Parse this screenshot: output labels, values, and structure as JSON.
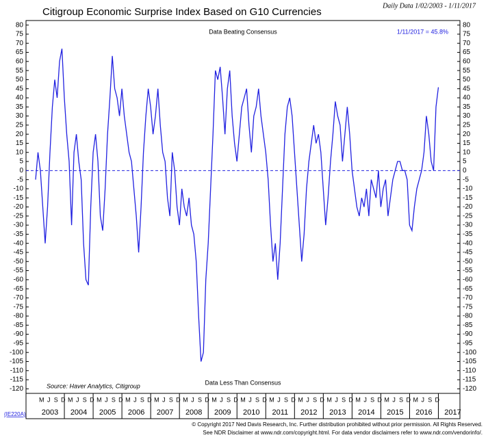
{
  "chart_data": {
    "type": "line",
    "title": "Citigroup Economic Surprise Index Based on G10 Currencies",
    "subtitle": "Daily Data 1/02/2003 - 1/11/2017",
    "annotations": [
      "Data Beating Consensus",
      "Data Less Than Consensus",
      "1/11/2017 = 45.8%"
    ],
    "source": "Source: Haver Analytics, Citigroup",
    "code": "(IE220A)",
    "copyright": [
      "© Copyright 2017 Ned Davis Research, Inc. Further distribution prohibited without prior permission. All Rights Reserved.",
      "See NDR Disclaimer at www.ndr.com/copyright.html. For data vendor disclaimers refer to www.ndr.com/vendorinfo/."
    ],
    "month_labels": [
      "M",
      "J",
      "S",
      "D"
    ],
    "year_labels": [
      "2003",
      "2004",
      "2005",
      "2006",
      "2007",
      "2008",
      "2009",
      "2010",
      "2011",
      "2012",
      "2013",
      "2014",
      "2015",
      "2016",
      "2017"
    ],
    "xlim": [
      "2002-09",
      "2017-10"
    ],
    "ylim": [
      -122.5,
      82.5
    ],
    "yticks": [
      80,
      75,
      70,
      65,
      60,
      55,
      50,
      45,
      40,
      35,
      30,
      25,
      20,
      15,
      10,
      5,
      0,
      -5,
      -10,
      -15,
      -20,
      -25,
      -30,
      -35,
      -40,
      -45,
      -50,
      -55,
      -60,
      -65,
      -70,
      -75,
      -80,
      -85,
      -90,
      -95,
      -100,
      -105,
      -110,
      -115,
      -120
    ],
    "reference_line": 0,
    "series": [
      {
        "name": "Citigroup Economic Surprise Index",
        "color": "#2020e0",
        "x": [
          "2003-01",
          "2003-02",
          "2003-03",
          "2003-04",
          "2003-05",
          "2003-06",
          "2003-07",
          "2003-08",
          "2003-09",
          "2003-10",
          "2003-11",
          "2003-12",
          "2004-01",
          "2004-02",
          "2004-03",
          "2004-04",
          "2004-05",
          "2004-06",
          "2004-07",
          "2004-08",
          "2004-09",
          "2004-10",
          "2004-11",
          "2004-12",
          "2005-01",
          "2005-02",
          "2005-03",
          "2005-04",
          "2005-05",
          "2005-06",
          "2005-07",
          "2005-08",
          "2005-09",
          "2005-10",
          "2005-11",
          "2005-12",
          "2006-01",
          "2006-02",
          "2006-03",
          "2006-04",
          "2006-05",
          "2006-06",
          "2006-07",
          "2006-08",
          "2006-09",
          "2006-10",
          "2006-11",
          "2006-12",
          "2007-01",
          "2007-02",
          "2007-03",
          "2007-04",
          "2007-05",
          "2007-06",
          "2007-07",
          "2007-08",
          "2007-09",
          "2007-10",
          "2007-11",
          "2007-12",
          "2008-01",
          "2008-02",
          "2008-03",
          "2008-04",
          "2008-05",
          "2008-06",
          "2008-07",
          "2008-08",
          "2008-09",
          "2008-10",
          "2008-11",
          "2008-12",
          "2009-01",
          "2009-02",
          "2009-03",
          "2009-04",
          "2009-05",
          "2009-06",
          "2009-07",
          "2009-08",
          "2009-09",
          "2009-10",
          "2009-11",
          "2009-12",
          "2010-01",
          "2010-02",
          "2010-03",
          "2010-04",
          "2010-05",
          "2010-06",
          "2010-07",
          "2010-08",
          "2010-09",
          "2010-10",
          "2010-11",
          "2010-12",
          "2011-01",
          "2011-02",
          "2011-03",
          "2011-04",
          "2011-05",
          "2011-06",
          "2011-07",
          "2011-08",
          "2011-09",
          "2011-10",
          "2011-11",
          "2011-12",
          "2012-01",
          "2012-02",
          "2012-03",
          "2012-04",
          "2012-05",
          "2012-06",
          "2012-07",
          "2012-08",
          "2012-09",
          "2012-10",
          "2012-11",
          "2012-12",
          "2013-01",
          "2013-02",
          "2013-03",
          "2013-04",
          "2013-05",
          "2013-06",
          "2013-07",
          "2013-08",
          "2013-09",
          "2013-10",
          "2013-11",
          "2013-12",
          "2014-01",
          "2014-02",
          "2014-03",
          "2014-04",
          "2014-05",
          "2014-06",
          "2014-07",
          "2014-08",
          "2014-09",
          "2014-10",
          "2014-11",
          "2014-12",
          "2015-01",
          "2015-02",
          "2015-03",
          "2015-04",
          "2015-05",
          "2015-06",
          "2015-07",
          "2015-08",
          "2015-09",
          "2015-10",
          "2015-11",
          "2015-12",
          "2016-01",
          "2016-02",
          "2016-03",
          "2016-04",
          "2016-05",
          "2016-06",
          "2016-07",
          "2016-08",
          "2016-09",
          "2016-10",
          "2016-11",
          "2016-12",
          "2017-01"
        ],
        "values": [
          -5,
          10,
          0,
          -20,
          -40,
          -20,
          10,
          35,
          50,
          40,
          60,
          67,
          40,
          20,
          5,
          -30,
          10,
          20,
          5,
          -5,
          -40,
          -60,
          -63,
          -20,
          10,
          20,
          5,
          -25,
          -33,
          -10,
          20,
          40,
          63,
          45,
          40,
          30,
          45,
          30,
          20,
          10,
          5,
          -10,
          -25,
          -45,
          -20,
          10,
          30,
          45,
          35,
          20,
          30,
          45,
          25,
          10,
          5,
          -15,
          -25,
          10,
          0,
          -20,
          -30,
          -10,
          -20,
          -25,
          -15,
          -30,
          -35,
          -50,
          -80,
          -105,
          -100,
          -60,
          -40,
          -10,
          20,
          55,
          50,
          57,
          40,
          20,
          45,
          55,
          30,
          15,
          5,
          20,
          35,
          40,
          45,
          25,
          10,
          30,
          35,
          45,
          30,
          20,
          10,
          -5,
          -30,
          -50,
          -40,
          -60,
          -40,
          -10,
          20,
          35,
          40,
          30,
          10,
          -10,
          -30,
          -50,
          -35,
          -10,
          5,
          15,
          25,
          15,
          20,
          10,
          -10,
          -30,
          -15,
          5,
          20,
          38,
          30,
          25,
          5,
          20,
          35,
          20,
          0,
          -10,
          -20,
          -25,
          -15,
          -20,
          -10,
          -25,
          -5,
          -10,
          -15,
          0,
          -20,
          -10,
          -5,
          -25,
          -15,
          -5,
          0,
          5,
          5,
          0,
          0,
          -5,
          -30,
          -33,
          -20,
          -10,
          -5,
          0,
          10,
          30,
          20,
          5,
          0,
          35,
          45.8
        ]
      }
    ]
  }
}
